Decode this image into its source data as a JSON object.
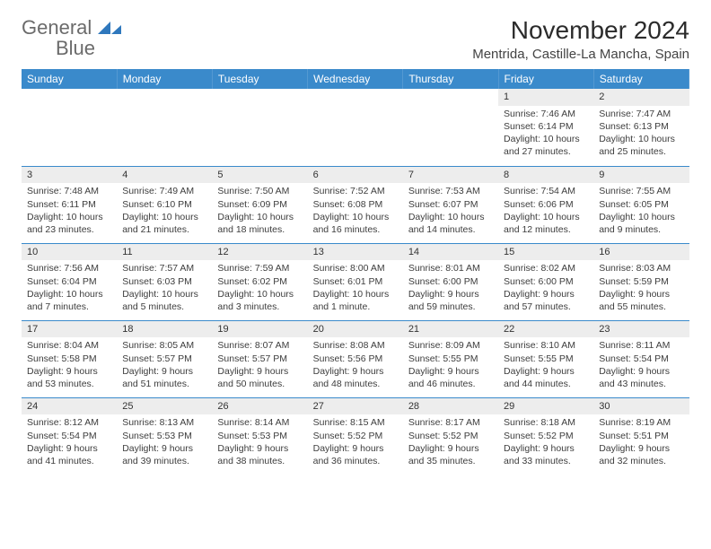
{
  "logo": {
    "text_general": "General",
    "text_blue": "Blue"
  },
  "header": {
    "title": "November 2024",
    "location": "Mentrida, Castille-La Mancha, Spain"
  },
  "colors": {
    "header_bg": "#3a8acb",
    "daynum_bg": "#ededed",
    "rule": "#3a8acb",
    "logo_grey": "#6b6b6b",
    "logo_blue": "#2f78bd"
  },
  "weekdays": [
    "Sunday",
    "Monday",
    "Tuesday",
    "Wednesday",
    "Thursday",
    "Friday",
    "Saturday"
  ],
  "weeks": [
    [
      {
        "n": "",
        "sunrise": "",
        "sunset": "",
        "daylight": ""
      },
      {
        "n": "",
        "sunrise": "",
        "sunset": "",
        "daylight": ""
      },
      {
        "n": "",
        "sunrise": "",
        "sunset": "",
        "daylight": ""
      },
      {
        "n": "",
        "sunrise": "",
        "sunset": "",
        "daylight": ""
      },
      {
        "n": "",
        "sunrise": "",
        "sunset": "",
        "daylight": ""
      },
      {
        "n": "1",
        "sunrise": "Sunrise: 7:46 AM",
        "sunset": "Sunset: 6:14 PM",
        "daylight": "Daylight: 10 hours and 27 minutes."
      },
      {
        "n": "2",
        "sunrise": "Sunrise: 7:47 AM",
        "sunset": "Sunset: 6:13 PM",
        "daylight": "Daylight: 10 hours and 25 minutes."
      }
    ],
    [
      {
        "n": "3",
        "sunrise": "Sunrise: 7:48 AM",
        "sunset": "Sunset: 6:11 PM",
        "daylight": "Daylight: 10 hours and 23 minutes."
      },
      {
        "n": "4",
        "sunrise": "Sunrise: 7:49 AM",
        "sunset": "Sunset: 6:10 PM",
        "daylight": "Daylight: 10 hours and 21 minutes."
      },
      {
        "n": "5",
        "sunrise": "Sunrise: 7:50 AM",
        "sunset": "Sunset: 6:09 PM",
        "daylight": "Daylight: 10 hours and 18 minutes."
      },
      {
        "n": "6",
        "sunrise": "Sunrise: 7:52 AM",
        "sunset": "Sunset: 6:08 PM",
        "daylight": "Daylight: 10 hours and 16 minutes."
      },
      {
        "n": "7",
        "sunrise": "Sunrise: 7:53 AM",
        "sunset": "Sunset: 6:07 PM",
        "daylight": "Daylight: 10 hours and 14 minutes."
      },
      {
        "n": "8",
        "sunrise": "Sunrise: 7:54 AM",
        "sunset": "Sunset: 6:06 PM",
        "daylight": "Daylight: 10 hours and 12 minutes."
      },
      {
        "n": "9",
        "sunrise": "Sunrise: 7:55 AM",
        "sunset": "Sunset: 6:05 PM",
        "daylight": "Daylight: 10 hours and 9 minutes."
      }
    ],
    [
      {
        "n": "10",
        "sunrise": "Sunrise: 7:56 AM",
        "sunset": "Sunset: 6:04 PM",
        "daylight": "Daylight: 10 hours and 7 minutes."
      },
      {
        "n": "11",
        "sunrise": "Sunrise: 7:57 AM",
        "sunset": "Sunset: 6:03 PM",
        "daylight": "Daylight: 10 hours and 5 minutes."
      },
      {
        "n": "12",
        "sunrise": "Sunrise: 7:59 AM",
        "sunset": "Sunset: 6:02 PM",
        "daylight": "Daylight: 10 hours and 3 minutes."
      },
      {
        "n": "13",
        "sunrise": "Sunrise: 8:00 AM",
        "sunset": "Sunset: 6:01 PM",
        "daylight": "Daylight: 10 hours and 1 minute."
      },
      {
        "n": "14",
        "sunrise": "Sunrise: 8:01 AM",
        "sunset": "Sunset: 6:00 PM",
        "daylight": "Daylight: 9 hours and 59 minutes."
      },
      {
        "n": "15",
        "sunrise": "Sunrise: 8:02 AM",
        "sunset": "Sunset: 6:00 PM",
        "daylight": "Daylight: 9 hours and 57 minutes."
      },
      {
        "n": "16",
        "sunrise": "Sunrise: 8:03 AM",
        "sunset": "Sunset: 5:59 PM",
        "daylight": "Daylight: 9 hours and 55 minutes."
      }
    ],
    [
      {
        "n": "17",
        "sunrise": "Sunrise: 8:04 AM",
        "sunset": "Sunset: 5:58 PM",
        "daylight": "Daylight: 9 hours and 53 minutes."
      },
      {
        "n": "18",
        "sunrise": "Sunrise: 8:05 AM",
        "sunset": "Sunset: 5:57 PM",
        "daylight": "Daylight: 9 hours and 51 minutes."
      },
      {
        "n": "19",
        "sunrise": "Sunrise: 8:07 AM",
        "sunset": "Sunset: 5:57 PM",
        "daylight": "Daylight: 9 hours and 50 minutes."
      },
      {
        "n": "20",
        "sunrise": "Sunrise: 8:08 AM",
        "sunset": "Sunset: 5:56 PM",
        "daylight": "Daylight: 9 hours and 48 minutes."
      },
      {
        "n": "21",
        "sunrise": "Sunrise: 8:09 AM",
        "sunset": "Sunset: 5:55 PM",
        "daylight": "Daylight: 9 hours and 46 minutes."
      },
      {
        "n": "22",
        "sunrise": "Sunrise: 8:10 AM",
        "sunset": "Sunset: 5:55 PM",
        "daylight": "Daylight: 9 hours and 44 minutes."
      },
      {
        "n": "23",
        "sunrise": "Sunrise: 8:11 AM",
        "sunset": "Sunset: 5:54 PM",
        "daylight": "Daylight: 9 hours and 43 minutes."
      }
    ],
    [
      {
        "n": "24",
        "sunrise": "Sunrise: 8:12 AM",
        "sunset": "Sunset: 5:54 PM",
        "daylight": "Daylight: 9 hours and 41 minutes."
      },
      {
        "n": "25",
        "sunrise": "Sunrise: 8:13 AM",
        "sunset": "Sunset: 5:53 PM",
        "daylight": "Daylight: 9 hours and 39 minutes."
      },
      {
        "n": "26",
        "sunrise": "Sunrise: 8:14 AM",
        "sunset": "Sunset: 5:53 PM",
        "daylight": "Daylight: 9 hours and 38 minutes."
      },
      {
        "n": "27",
        "sunrise": "Sunrise: 8:15 AM",
        "sunset": "Sunset: 5:52 PM",
        "daylight": "Daylight: 9 hours and 36 minutes."
      },
      {
        "n": "28",
        "sunrise": "Sunrise: 8:17 AM",
        "sunset": "Sunset: 5:52 PM",
        "daylight": "Daylight: 9 hours and 35 minutes."
      },
      {
        "n": "29",
        "sunrise": "Sunrise: 8:18 AM",
        "sunset": "Sunset: 5:52 PM",
        "daylight": "Daylight: 9 hours and 33 minutes."
      },
      {
        "n": "30",
        "sunrise": "Sunrise: 8:19 AM",
        "sunset": "Sunset: 5:51 PM",
        "daylight": "Daylight: 9 hours and 32 minutes."
      }
    ]
  ]
}
